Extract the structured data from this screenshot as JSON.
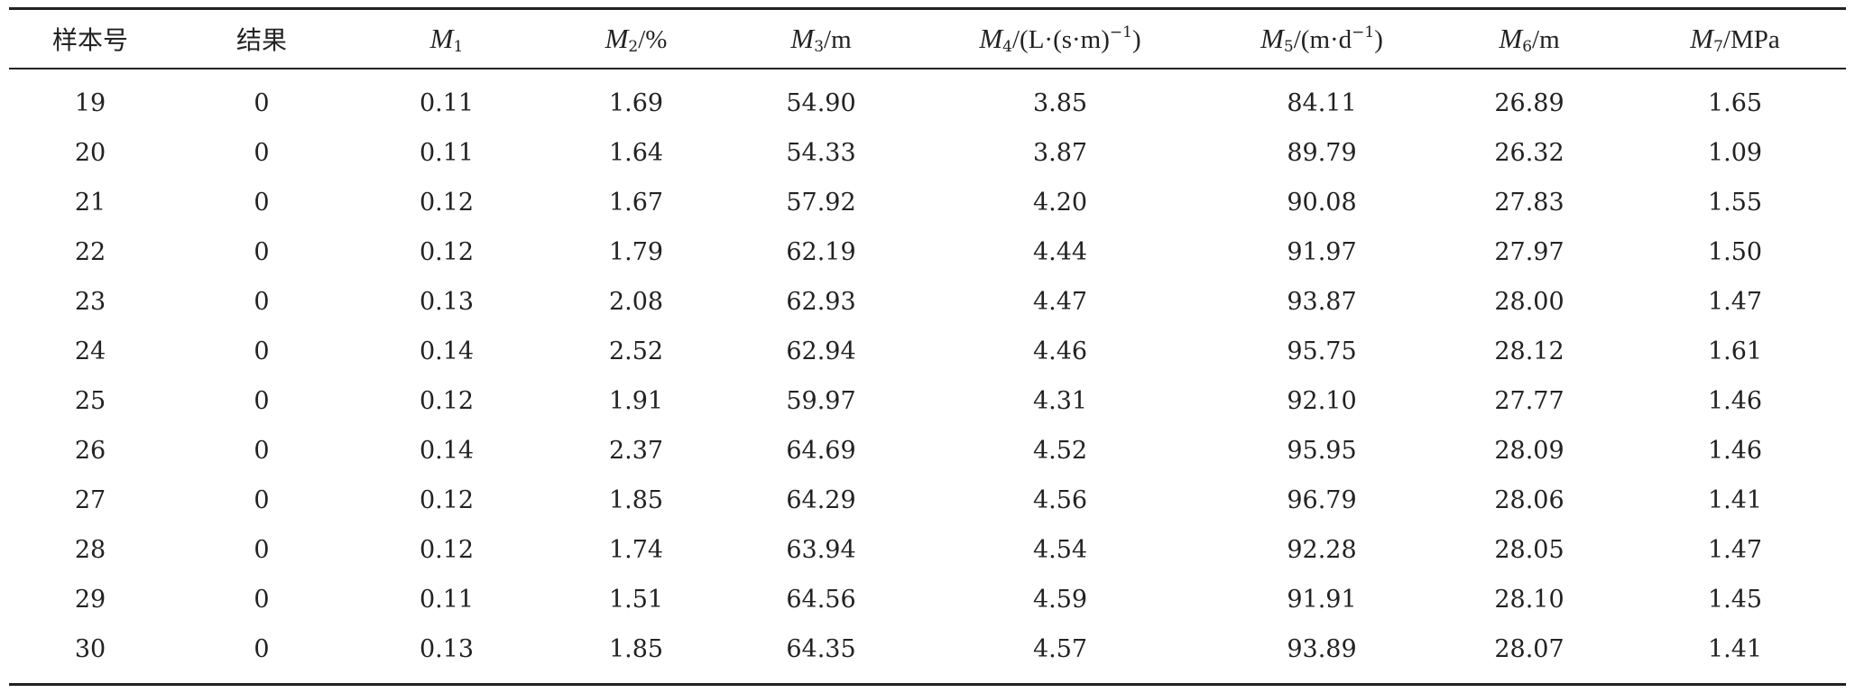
{
  "table": {
    "headers": [
      {
        "type": "text",
        "label": "样本号"
      },
      {
        "type": "text",
        "label": "结果"
      },
      {
        "type": "var",
        "var": "M",
        "sub": "1",
        "unit": "",
        "sup": "",
        "unit_end": ""
      },
      {
        "type": "var",
        "var": "M",
        "sub": "2",
        "unit": "/%",
        "sup": "",
        "unit_end": ""
      },
      {
        "type": "var",
        "var": "M",
        "sub": "3",
        "unit": "/m",
        "sup": "",
        "unit_end": ""
      },
      {
        "type": "var",
        "var": "M",
        "sub": "4",
        "unit": "/(L·(s·m)",
        "sup": "−1",
        "unit_end": ")"
      },
      {
        "type": "var",
        "var": "M",
        "sub": "5",
        "unit": "/(m·d",
        "sup": "−1",
        "unit_end": ")"
      },
      {
        "type": "var",
        "var": "M",
        "sub": "6",
        "unit": "/m",
        "sup": "",
        "unit_end": ""
      },
      {
        "type": "var",
        "var": "M",
        "sub": "7",
        "unit": "/MPa",
        "sup": "",
        "unit_end": ""
      }
    ],
    "rows": [
      [
        "19",
        "0",
        "0.11",
        "1.69",
        "54.90",
        "3.85",
        "84.11",
        "26.89",
        "1.65"
      ],
      [
        "20",
        "0",
        "0.11",
        "1.64",
        "54.33",
        "3.87",
        "89.79",
        "26.32",
        "1.09"
      ],
      [
        "21",
        "0",
        "0.12",
        "1.67",
        "57.92",
        "4.20",
        "90.08",
        "27.83",
        "1.55"
      ],
      [
        "22",
        "0",
        "0.12",
        "1.79",
        "62.19",
        "4.44",
        "91.97",
        "27.97",
        "1.50"
      ],
      [
        "23",
        "0",
        "0.13",
        "2.08",
        "62.93",
        "4.47",
        "93.87",
        "28.00",
        "1.47"
      ],
      [
        "24",
        "0",
        "0.14",
        "2.52",
        "62.94",
        "4.46",
        "95.75",
        "28.12",
        "1.61"
      ],
      [
        "25",
        "0",
        "0.12",
        "1.91",
        "59.97",
        "4.31",
        "92.10",
        "27.77",
        "1.46"
      ],
      [
        "26",
        "0",
        "0.14",
        "2.37",
        "64.69",
        "4.52",
        "95.95",
        "28.09",
        "1.46"
      ],
      [
        "27",
        "0",
        "0.12",
        "1.85",
        "64.29",
        "4.56",
        "96.79",
        "28.06",
        "1.41"
      ],
      [
        "28",
        "0",
        "0.12",
        "1.74",
        "63.94",
        "4.54",
        "92.28",
        "28.05",
        "1.47"
      ],
      [
        "29",
        "0",
        "0.11",
        "1.51",
        "64.56",
        "4.59",
        "91.91",
        "28.10",
        "1.45"
      ],
      [
        "30",
        "0",
        "0.13",
        "1.85",
        "64.35",
        "4.57",
        "93.89",
        "28.07",
        "1.41"
      ]
    ]
  }
}
